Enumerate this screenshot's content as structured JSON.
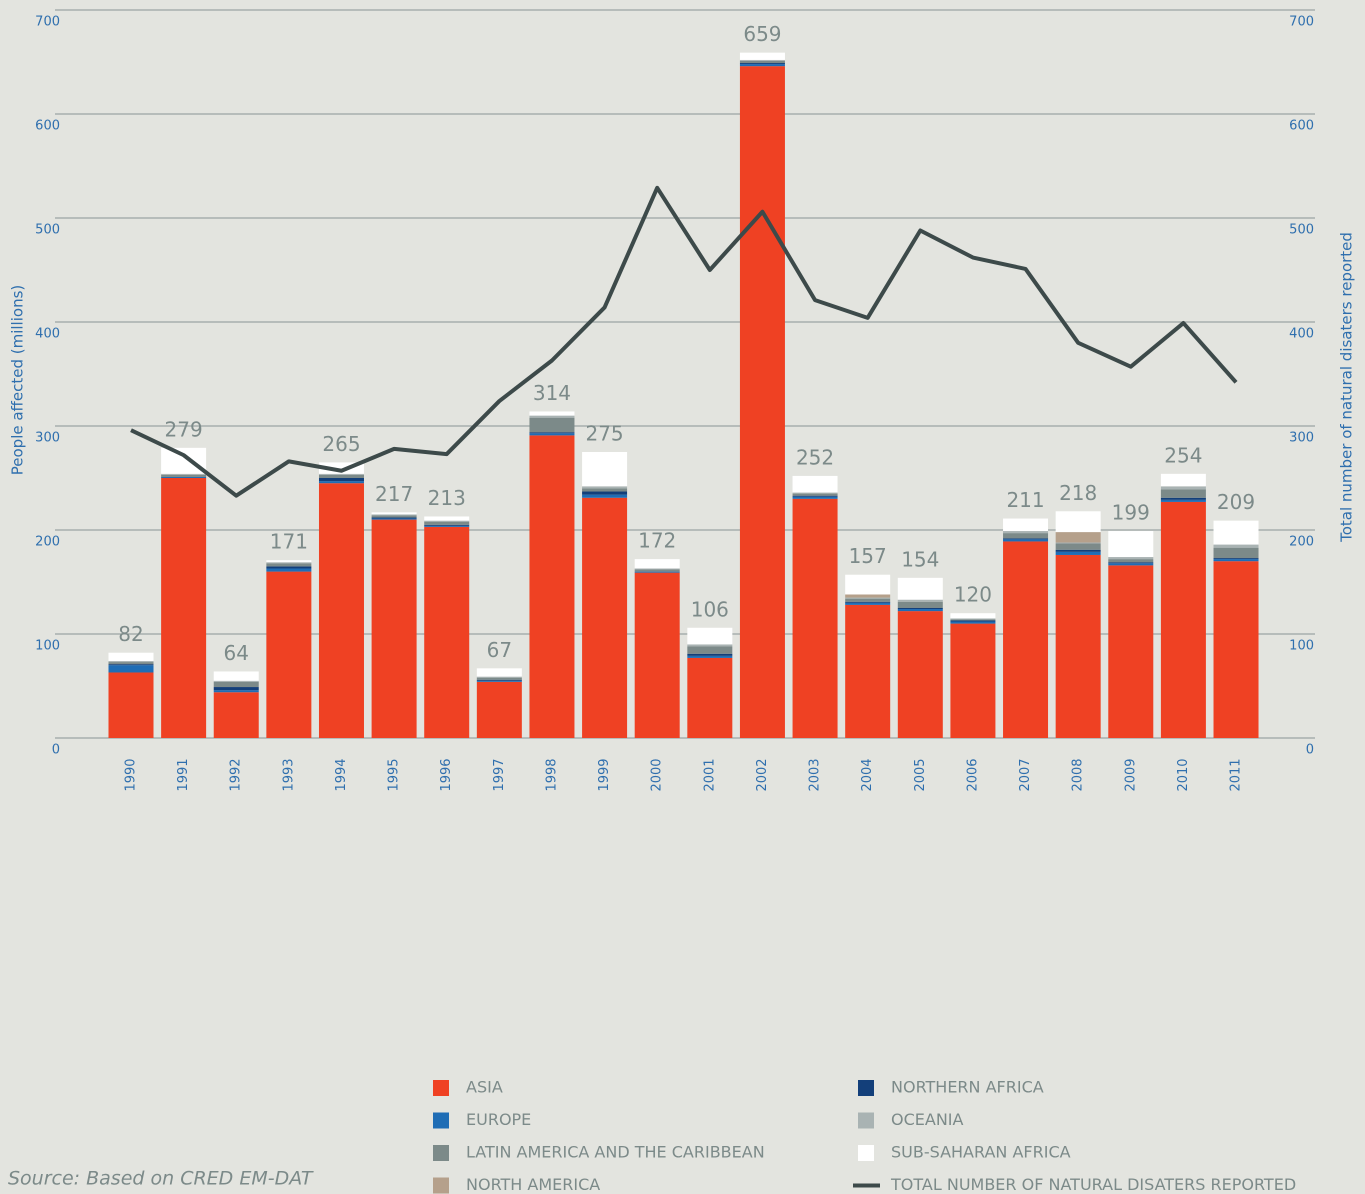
{
  "chart_data": {
    "type": "bar",
    "stacked": true,
    "ylabel": "People affected (millions)",
    "y2label": "Total number of natural disaters reported",
    "source": "Source: Based on CRED EM-DAT",
    "categories": [
      "1990",
      "1991",
      "1992",
      "1993",
      "1994",
      "1995",
      "1996",
      "1997",
      "1998",
      "1999",
      "2000",
      "2001",
      "2002",
      "2003",
      "2004",
      "2005",
      "2006",
      "2007",
      "2008",
      "2009",
      "2010",
      "2011"
    ],
    "totals": [
      82,
      279,
      64,
      171,
      265,
      217,
      213,
      67,
      314,
      275,
      172,
      106,
      659,
      252,
      157,
      154,
      120,
      211,
      218,
      199,
      254,
      209
    ],
    "ylim": [
      0,
      700
    ],
    "yticks": [
      0,
      100,
      200,
      300,
      400,
      500,
      600,
      700
    ],
    "y2lim": [
      0,
      700
    ],
    "y2ticks": [
      0,
      100,
      200,
      300,
      400,
      500,
      600,
      700
    ],
    "grid": true,
    "series": [
      {
        "name": "ASIA",
        "color": "#ef4123",
        "values": [
          63,
          250,
          44,
          160,
          245,
          210,
          203,
          54,
          291,
          231,
          159,
          77,
          646,
          230,
          128,
          122,
          110,
          189,
          176,
          166,
          227,
          170
        ]
      },
      {
        "name": "EUROPE",
        "color": "#1f6db5",
        "values": [
          7,
          1,
          2,
          3,
          2,
          1,
          1,
          1,
          2,
          3,
          1,
          2,
          2,
          2,
          2,
          2,
          2,
          2,
          3,
          2,
          2,
          2
        ]
      },
      {
        "name": "NORTHERN AFRICA",
        "color": "#133f7a",
        "values": [
          1,
          0,
          3,
          2,
          3,
          1,
          1,
          1,
          1,
          3,
          0,
          2,
          1,
          1,
          1,
          1,
          1,
          1,
          2,
          1,
          2,
          1
        ]
      },
      {
        "name": "LATIN AMERICA AND THE CARIBBEAN",
        "color": "#7c8a89",
        "values": [
          2,
          2,
          5,
          3,
          3,
          2,
          3,
          2,
          14,
          3,
          2,
          7,
          2,
          2,
          3,
          6,
          1,
          5,
          6,
          3,
          8,
          10
        ]
      },
      {
        "name": "OCEANIA",
        "color": "#a9b3b3",
        "values": [
          1,
          1,
          1,
          1,
          1,
          1,
          1,
          1,
          2,
          2,
          1,
          2,
          1,
          1,
          1,
          2,
          1,
          2,
          1,
          2,
          3,
          3
        ]
      },
      {
        "name": "NORTH AMERICA",
        "color": "#b5a08b",
        "values": [
          0,
          0,
          0,
          0,
          0,
          0,
          0,
          0,
          0,
          0,
          0,
          0,
          0,
          0,
          3,
          0,
          0,
          0,
          10,
          0,
          0,
          0
        ]
      },
      {
        "name": "SUB-SAHARAN AFRICA",
        "color": "#ffffff",
        "values": [
          8,
          25,
          9,
          2,
          11,
          2,
          4,
          8,
          4,
          33,
          9,
          16,
          7,
          16,
          19,
          21,
          5,
          12,
          20,
          25,
          12,
          23
        ]
      },
      {
        "name": "TOTAL NUMBER OF NATURAL DISATERS REPORTED",
        "color": "#3d4a4a",
        "type": "line",
        "axis": "y2",
        "values": [
          296,
          272,
          233,
          266,
          257,
          278,
          273,
          324,
          363,
          414,
          529,
          450,
          506,
          421,
          404,
          488,
          462,
          451,
          380,
          357,
          399,
          342
        ]
      }
    ]
  }
}
